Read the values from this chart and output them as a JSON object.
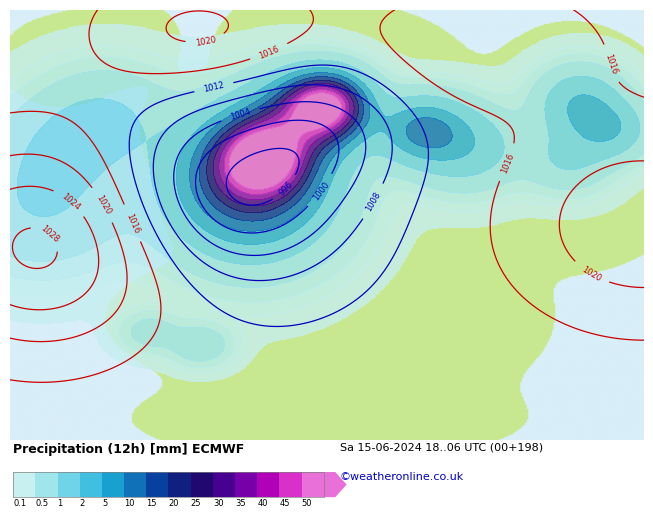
{
  "title": "Precipitation (12h) [mm] ECMWF",
  "date_str": "Sa 15-06-2024 18..06 UTC (00+198)",
  "website": "©weatheronline.co.uk",
  "colorbar_labels": [
    "0.1",
    "0.5",
    "1",
    "2",
    "5",
    "10",
    "15",
    "20",
    "25",
    "30",
    "35",
    "40",
    "45",
    "50"
  ],
  "colorbar_colors": [
    "#c8f0f0",
    "#a0e4ec",
    "#70d4e8",
    "#40bfe0",
    "#18a0d0",
    "#1070b8",
    "#0840a0",
    "#102080",
    "#200870",
    "#480090",
    "#7800a8",
    "#b000b8",
    "#d830c8",
    "#e870d8"
  ],
  "ocean_color": "#d8eef8",
  "land_color": "#c8e890",
  "mountain_color": "#b0b0a0",
  "fig_width": 6.34,
  "fig_height": 4.9,
  "title_fontsize": 9,
  "date_fontsize": 8,
  "website_color": "#0000cc",
  "website_fontsize": 8,
  "low_contour_color": "#0000bb",
  "high_contour_color": "#cc0000",
  "low_levels": [
    996,
    1000,
    1004,
    1008,
    1012
  ],
  "high_levels": [
    1016,
    1020,
    1024,
    1028
  ],
  "contour_label_fontsize": 6
}
